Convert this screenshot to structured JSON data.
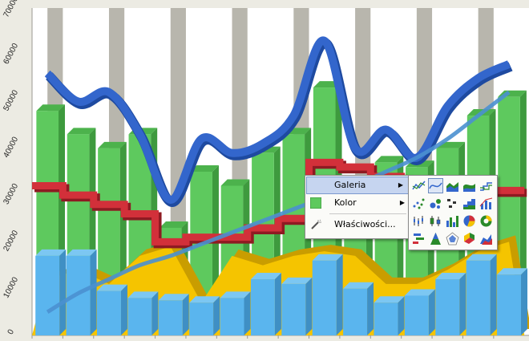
{
  "chart_data": {
    "type": "bar",
    "ylim": [
      0,
      70000
    ],
    "yticks": [
      "0",
      "10000",
      "20000",
      "30000",
      "40000",
      "50000",
      "60000",
      "70000"
    ],
    "grid": true,
    "series": [
      {
        "kind": "bar",
        "color": "#5ec95e",
        "values": [
          48000,
          43000,
          40000,
          43000,
          23000,
          35000,
          32000,
          39000,
          43000,
          53000,
          28000,
          37000,
          36000,
          40000,
          47000,
          51000
        ]
      },
      {
        "kind": "bar",
        "color": "#5ab5ee",
        "values": [
          17000,
          17000,
          9500,
          8000,
          7500,
          7000,
          8000,
          12000,
          11000,
          16000,
          10000,
          7000,
          8500,
          12000,
          16000,
          13000
        ]
      },
      {
        "kind": "area",
        "color": "#f5c400",
        "values": [
          12000,
          14000,
          11000,
          17000,
          19000,
          7000,
          17000,
          15000,
          17000,
          18000,
          17000,
          11000,
          11000,
          14000,
          18000,
          20000
        ]
      },
      {
        "kind": "step",
        "color": "#d2303a",
        "values": [
          32000,
          30000,
          28000,
          26000,
          20000,
          21000,
          21000,
          23000,
          25000,
          37000,
          36000,
          34000,
          33000,
          31000,
          31000,
          31000
        ]
      },
      {
        "kind": "spline",
        "color": "#3366cc",
        "values": [
          56000,
          50000,
          52000,
          43000,
          29000,
          42000,
          39000,
          41000,
          47000,
          63000,
          40000,
          44000,
          38000,
          49000,
          55000,
          58000
        ]
      },
      {
        "kind": "trend",
        "color": "#4a90d0",
        "values": [
          5000,
          9000,
          12000,
          15000,
          17000,
          19500,
          22000,
          24500,
          27000,
          29500,
          32000,
          35000,
          38000,
          42000,
          47000,
          52000
        ]
      }
    ]
  },
  "context_menu": {
    "items": [
      {
        "label": "Galeria",
        "icon": "none",
        "submenu": true
      },
      {
        "label": "Kolor",
        "icon": "color-swatch-icon",
        "submenu": true
      },
      {
        "label": "Właściwości...",
        "icon": "properties-wand-icon",
        "submenu": false
      }
    ]
  },
  "gallery": {
    "types": [
      "line",
      "curve",
      "area",
      "curve-area",
      "step",
      "scatter",
      "bubble",
      "surface",
      "step-area",
      "pareto",
      "high-low",
      "candlestick",
      "bar",
      "pie",
      "doughnut",
      "gantt",
      "pyramid",
      "radar",
      "cube",
      "3d-area"
    ],
    "selected": 1
  }
}
